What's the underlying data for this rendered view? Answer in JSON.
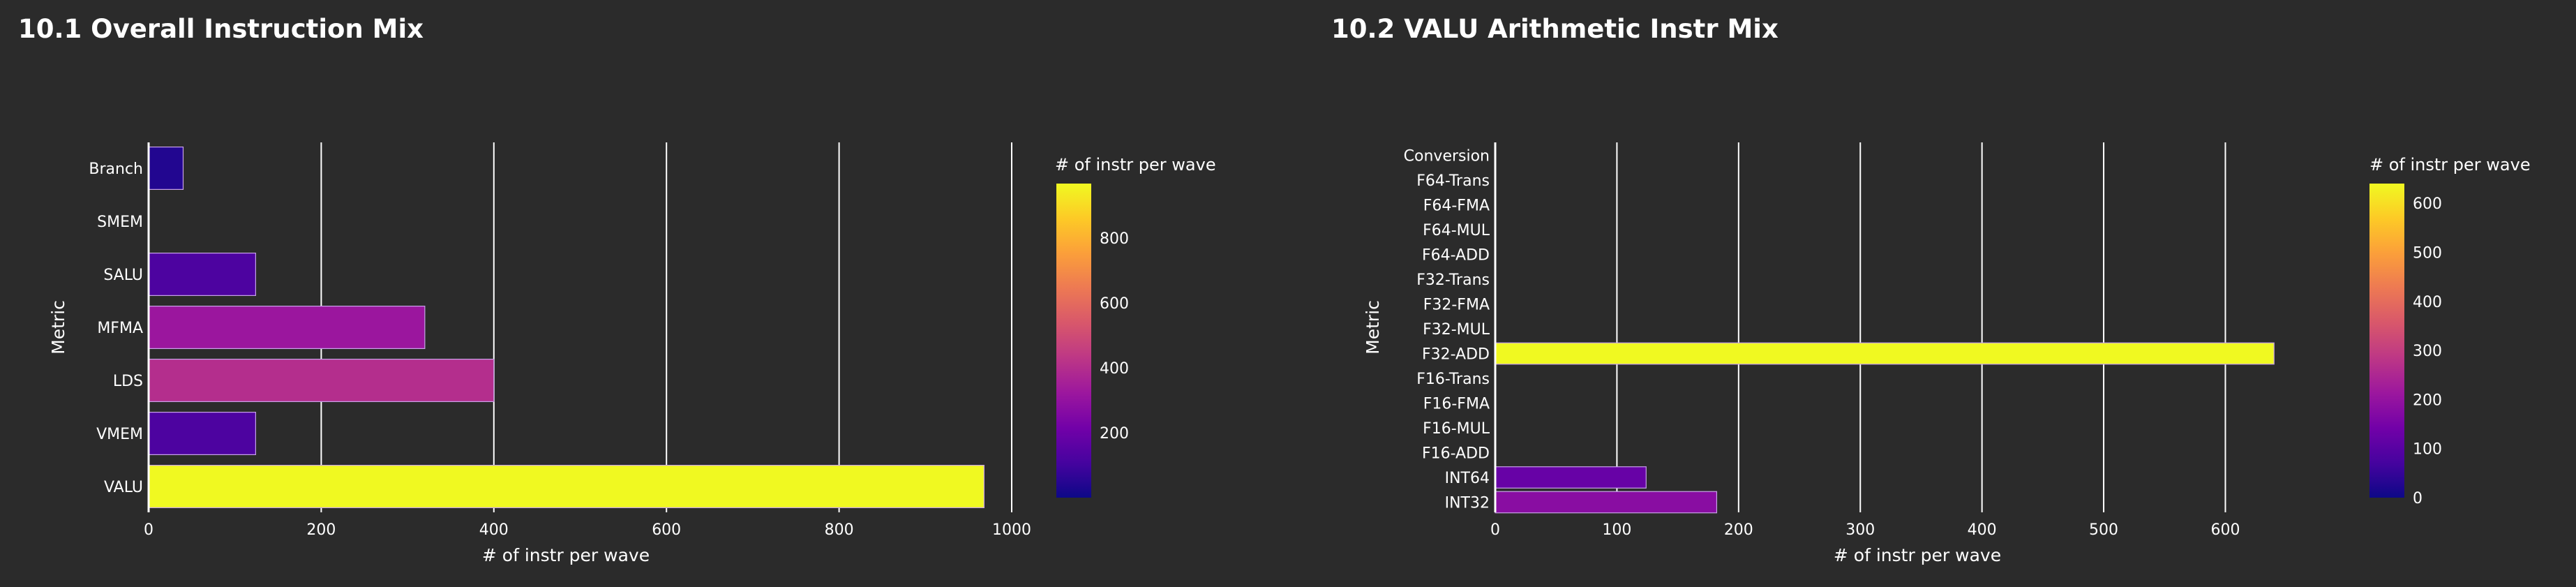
{
  "colorscale": [
    "#0d0887",
    "#46039f",
    "#7201a8",
    "#9c179e",
    "#bd3786",
    "#d8576b",
    "#ed7953",
    "#fb9f3a",
    "#fdca26",
    "#f0f921"
  ],
  "colors": {
    "background": "#2b2b2b",
    "text": "#ffffff",
    "grid": "#ffffff",
    "bar_outline": "#c8a2e8"
  },
  "chart_data": [
    {
      "title": "10.1 Overall Instruction Mix",
      "type": "bar",
      "orientation": "horizontal",
      "xlabel": "# of instr per wave",
      "ylabel": "Metric",
      "categories": [
        "Branch",
        "SMEM",
        "SALU",
        "MFMA",
        "LDS",
        "VMEM",
        "VALU"
      ],
      "values": [
        40,
        0,
        124,
        320,
        400,
        124,
        968
      ],
      "xlim": [
        0,
        1000
      ],
      "xticks": [
        0,
        200,
        400,
        600,
        800,
        1000
      ],
      "grid": true,
      "colorbar": {
        "title": "# of instr per wave",
        "min": 0,
        "max": 968,
        "ticks": [
          200,
          400,
          600,
          800
        ]
      }
    },
    {
      "title": "10.2 VALU Arithmetic Instr Mix",
      "type": "bar",
      "orientation": "horizontal",
      "xlabel": "# of instr per wave",
      "ylabel": "Metric",
      "categories": [
        "Conversion",
        "F64-Trans",
        "F64-FMA",
        "F64-MUL",
        "F64-ADD",
        "F32-Trans",
        "F32-FMA",
        "F32-MUL",
        "F32-ADD",
        "F16-Trans",
        "F16-FMA",
        "F16-MUL",
        "F16-ADD",
        "INT64",
        "INT32"
      ],
      "values": [
        0,
        0,
        0,
        0,
        0,
        0,
        0,
        0,
        640,
        0,
        0,
        0,
        0,
        124,
        182
      ],
      "xlim": [
        0,
        680
      ],
      "xticks": [
        0,
        100,
        200,
        300,
        400,
        500,
        600
      ],
      "grid": true,
      "colorbar": {
        "title": "# of instr per wave",
        "min": 0,
        "max": 640,
        "ticks": [
          0,
          100,
          200,
          300,
          400,
          500,
          600
        ]
      }
    }
  ]
}
